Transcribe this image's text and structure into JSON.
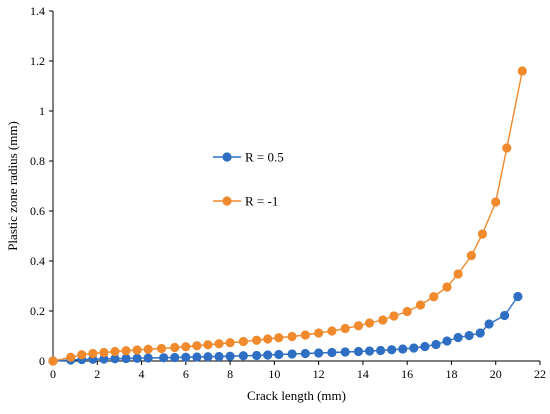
{
  "chart_data": {
    "type": "line",
    "title": "",
    "xlabel": "Crack length (mm)",
    "ylabel": "Plastic zone radius (mm)",
    "xlim": [
      0,
      22
    ],
    "ylim": [
      0,
      1.4
    ],
    "xticks": [
      "0",
      "2",
      "4",
      "6",
      "8",
      "10",
      "12",
      "14",
      "16",
      "18",
      "20",
      "22"
    ],
    "yticks": [
      "0",
      "0.2",
      "0.4",
      "0.6",
      "0.8",
      "1",
      "1.2",
      "1.4"
    ],
    "grid": false,
    "legend": "center-left",
    "series": [
      {
        "name": "R = 0.5",
        "color": "#2E6FC4",
        "points": [
          [
            0,
            0.0
          ],
          [
            0.8,
            0.004
          ],
          [
            1.3,
            0.006
          ],
          [
            1.8,
            0.007
          ],
          [
            2.3,
            0.008
          ],
          [
            2.8,
            0.009
          ],
          [
            3.3,
            0.01
          ],
          [
            3.8,
            0.011
          ],
          [
            4.3,
            0.012
          ],
          [
            5.0,
            0.013
          ],
          [
            5.5,
            0.014
          ],
          [
            6.0,
            0.015
          ],
          [
            6.5,
            0.016
          ],
          [
            7.0,
            0.017
          ],
          [
            7.5,
            0.018
          ],
          [
            8.0,
            0.019
          ],
          [
            8.6,
            0.021
          ],
          [
            9.2,
            0.022
          ],
          [
            9.7,
            0.024
          ],
          [
            10.2,
            0.026
          ],
          [
            10.8,
            0.028
          ],
          [
            11.4,
            0.03
          ],
          [
            12.0,
            0.032
          ],
          [
            12.6,
            0.034
          ],
          [
            13.2,
            0.036
          ],
          [
            13.8,
            0.038
          ],
          [
            14.3,
            0.04
          ],
          [
            14.8,
            0.042
          ],
          [
            15.3,
            0.045
          ],
          [
            15.8,
            0.048
          ],
          [
            16.3,
            0.052
          ],
          [
            16.8,
            0.058
          ],
          [
            17.3,
            0.066
          ],
          [
            17.8,
            0.08
          ],
          [
            18.3,
            0.094
          ],
          [
            18.8,
            0.102
          ],
          [
            19.3,
            0.112
          ],
          [
            19.7,
            0.148
          ],
          [
            20.4,
            0.182
          ],
          [
            21.0,
            0.258
          ]
        ]
      },
      {
        "name": "R = -1",
        "color": "#F08A2C",
        "points": [
          [
            0,
            0.0
          ],
          [
            0.8,
            0.015
          ],
          [
            1.3,
            0.025
          ],
          [
            1.8,
            0.03
          ],
          [
            2.3,
            0.034
          ],
          [
            2.8,
            0.038
          ],
          [
            3.3,
            0.041
          ],
          [
            3.8,
            0.044
          ],
          [
            4.3,
            0.047
          ],
          [
            4.9,
            0.05
          ],
          [
            5.5,
            0.054
          ],
          [
            6.0,
            0.057
          ],
          [
            6.5,
            0.061
          ],
          [
            7.0,
            0.065
          ],
          [
            7.5,
            0.069
          ],
          [
            8.0,
            0.073
          ],
          [
            8.6,
            0.078
          ],
          [
            9.2,
            0.083
          ],
          [
            9.7,
            0.088
          ],
          [
            10.2,
            0.093
          ],
          [
            10.8,
            0.098
          ],
          [
            11.4,
            0.104
          ],
          [
            12.0,
            0.112
          ],
          [
            12.6,
            0.12
          ],
          [
            13.2,
            0.13
          ],
          [
            13.8,
            0.141
          ],
          [
            14.3,
            0.152
          ],
          [
            14.9,
            0.164
          ],
          [
            15.4,
            0.18
          ],
          [
            16.0,
            0.198
          ],
          [
            16.6,
            0.224
          ],
          [
            17.2,
            0.257
          ],
          [
            17.8,
            0.296
          ],
          [
            18.3,
            0.348
          ],
          [
            18.9,
            0.422
          ],
          [
            19.4,
            0.508
          ],
          [
            20.0,
            0.636
          ],
          [
            20.5,
            0.852
          ],
          [
            21.2,
            1.16
          ]
        ]
      }
    ]
  }
}
